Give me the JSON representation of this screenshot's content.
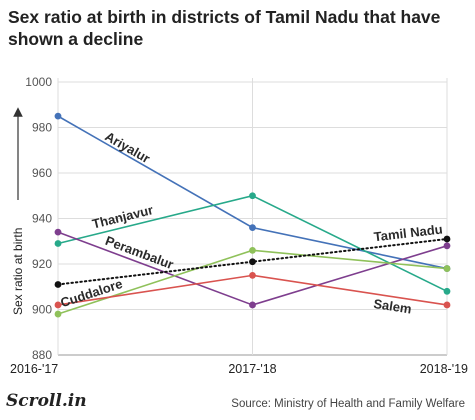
{
  "header": {
    "title": "Sex ratio at birth in districts of Tamil Nadu that have shown a decline"
  },
  "footer": {
    "brand": "Scroll.in",
    "source": "Source: Ministry of Health and Family Welfare"
  },
  "chart_data": {
    "type": "line",
    "title": "Sex ratio at birth in districts of Tamil Nadu that have shown a decline",
    "xlabel": "",
    "ylabel": "Sex ratio at birth",
    "x": [
      "2016-'17",
      "2017-'18",
      "2018-'19"
    ],
    "ylim": [
      880,
      1000
    ],
    "yticks": [
      880,
      900,
      920,
      940,
      960,
      980,
      1000
    ],
    "grid": "horizontal",
    "series": [
      {
        "name": "Ariyalur",
        "values": [
          985,
          936,
          918
        ],
        "color": "#4472b8",
        "style": "solid"
      },
      {
        "name": "Thanjavur",
        "values": [
          929,
          950,
          908
        ],
        "color": "#27a98a",
        "style": "solid"
      },
      {
        "name": "Perambalur",
        "values": [
          934,
          902,
          928
        ],
        "color": "#7e3e8e",
        "style": "solid"
      },
      {
        "name": "Cuddalore",
        "values": [
          898,
          926,
          918
        ],
        "color": "#8fc15a",
        "style": "solid"
      },
      {
        "name": "Salem",
        "values": [
          902,
          915,
          902
        ],
        "color": "#d9534f",
        "style": "solid"
      },
      {
        "name": "Tamil Nadu",
        "values": [
          911,
          921,
          931
        ],
        "color": "#111111",
        "style": "dotted"
      }
    ]
  }
}
